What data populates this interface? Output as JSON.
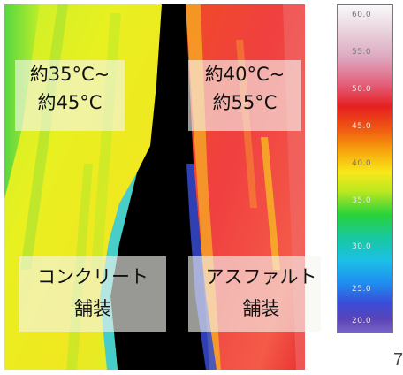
{
  "image": {
    "left_temperature": [
      "約35°C~",
      "約45°C"
    ],
    "right_temperature": [
      "約40°C~",
      "約55°C"
    ],
    "left_pavement": [
      "コンクリート",
      "舗装"
    ],
    "right_pavement": [
      "アスファルト",
      "舗装"
    ]
  },
  "scale": {
    "ticks": [
      "60.0",
      "55.0",
      "50.0",
      "45.0",
      "40.0",
      "35.0",
      "30.0",
      "25.0",
      "20.0"
    ],
    "colors": {
      "max": "#f8f8fb",
      "hot": "#e52020",
      "mid": "#f8e81a",
      "cool": "#28d23a",
      "cold": "#1e8cf0",
      "min": "#7a64c8"
    }
  },
  "page_number": "7"
}
